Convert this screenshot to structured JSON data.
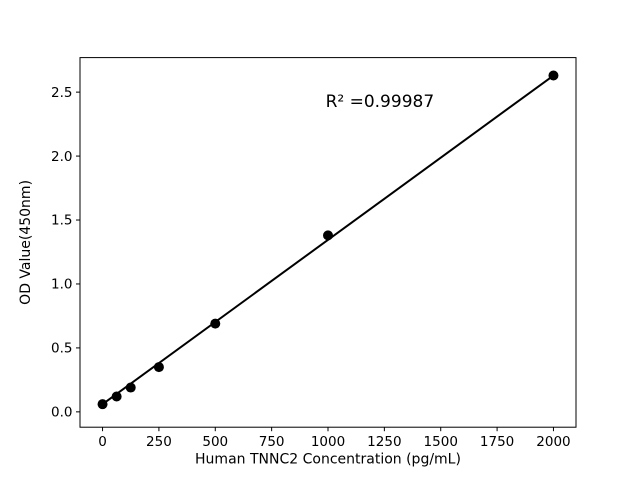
{
  "page": {
    "background": "#ffffff"
  },
  "chart_data": {
    "type": "scatter",
    "title": "",
    "xlabel": "Human TNNC2 Concentration (pg/mL)",
    "ylabel": "OD Value(450nm)",
    "annotation": {
      "text": "R² =0.99987",
      "x": 1230,
      "y": 2.43
    },
    "x": [
      0,
      62.5,
      125,
      250,
      500,
      1000,
      2000
    ],
    "y": [
      0.06,
      0.12,
      0.19,
      0.35,
      0.69,
      1.38,
      2.63
    ],
    "xticks": [
      0,
      250,
      500,
      750,
      1000,
      1250,
      1500,
      1750,
      2000
    ],
    "xtick_labels": [
      "0",
      "250",
      "500",
      "750",
      "1000",
      "1250",
      "1500",
      "1750",
      "2000"
    ],
    "yticks": [
      0.0,
      0.5,
      1.0,
      1.5,
      2.0,
      2.5
    ],
    "ytick_labels": [
      "0.0",
      "0.5",
      "1.0",
      "1.5",
      "2.0",
      "2.5"
    ],
    "xlim": [
      -100,
      2100
    ],
    "ylim": [
      -0.12,
      2.77
    ],
    "trendline": true,
    "grid": false,
    "legend": "none",
    "colors": {
      "marker": "#000000",
      "line": "#000000",
      "axis": "#000000",
      "text": "#000000"
    }
  }
}
